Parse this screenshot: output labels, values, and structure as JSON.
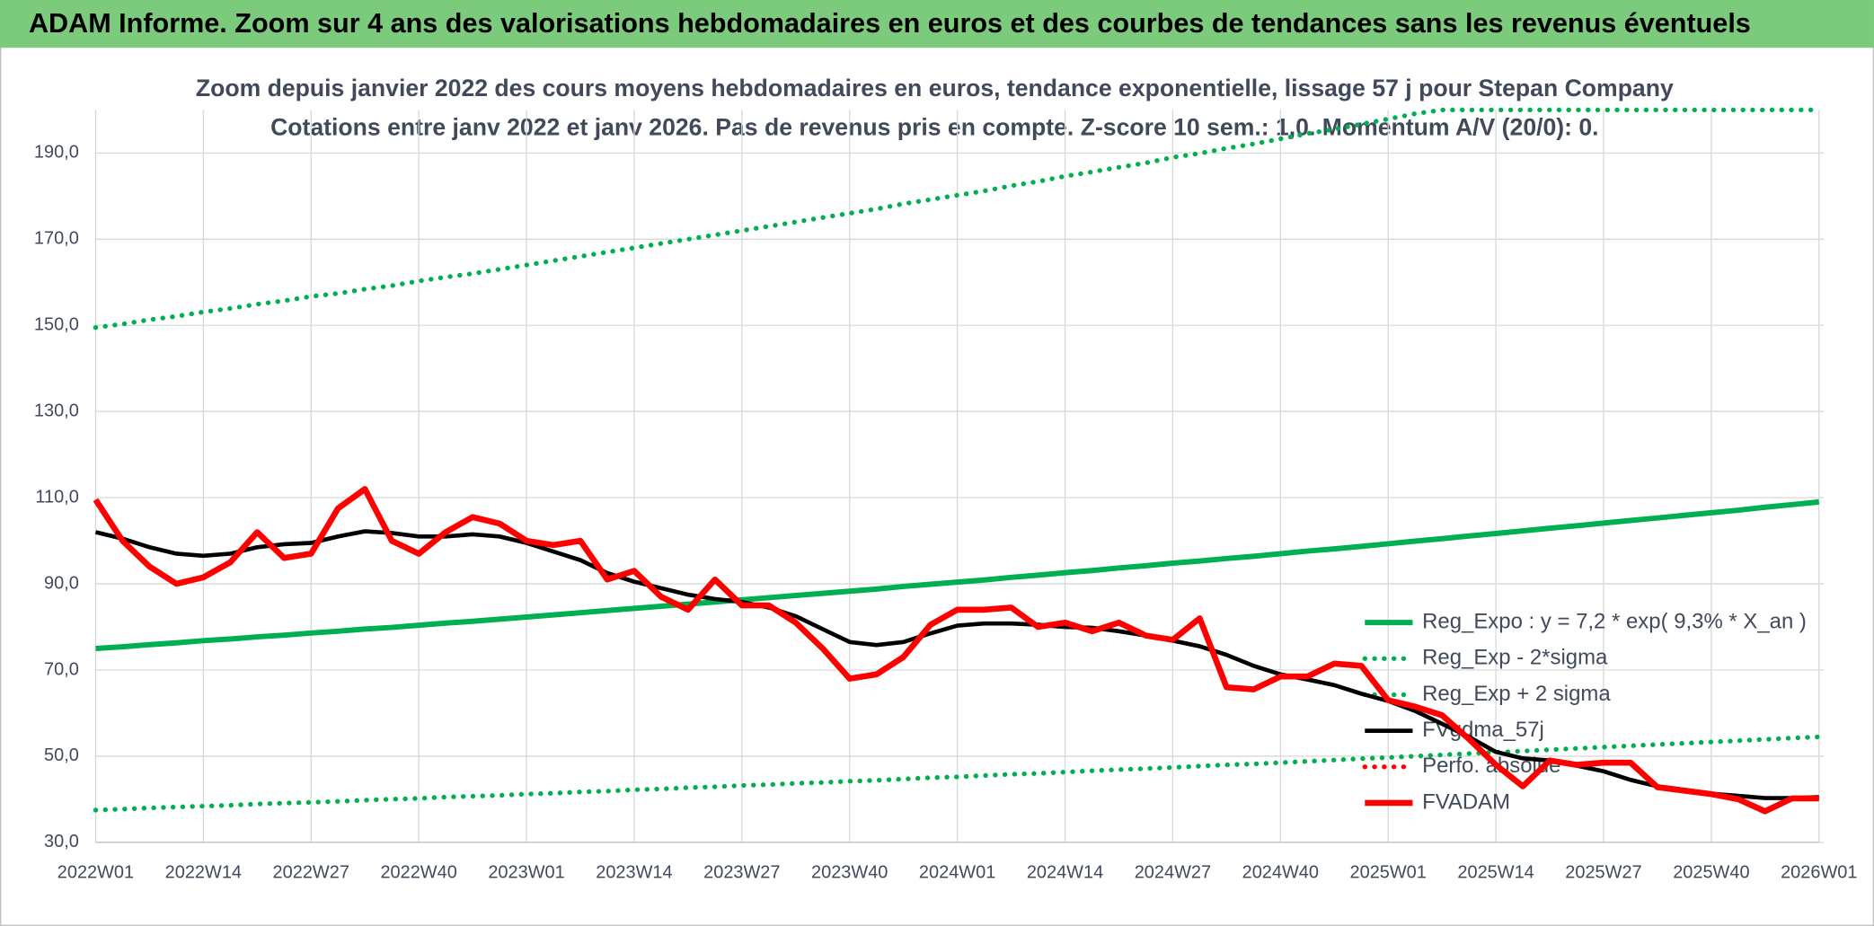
{
  "header": {
    "title": "ADAM Informe. Zoom sur 4 ans des valorisations hebdomadaires en euros et des courbes de tendances sans les revenus éventuels"
  },
  "chart_data": {
    "type": "line",
    "title": "Zoom depuis janvier 2022 des cours moyens hebdomadaires en euros, tendance exponentielle, lissage 57 j pour Stepan Company",
    "subtitle": "Cotations entre janv 2022 et janv 2026. Pas de revenus pris en compte. Z-score 10 sem.: 1,0. Momentum A/V (20/0): 0.",
    "categories": [
      "2022W01",
      null,
      null,
      null,
      "2022W14",
      null,
      null,
      null,
      "2022W27",
      null,
      null,
      null,
      "2022W40",
      null,
      null,
      null,
      "2023W01",
      null,
      null,
      null,
      "2023W14",
      null,
      null,
      null,
      "2023W27",
      null,
      null,
      null,
      "2023W40",
      null,
      null,
      null,
      "2024W01",
      null,
      null,
      null,
      "2024W14",
      null,
      null,
      null,
      "2024W27",
      null,
      null,
      null,
      "2024W40",
      null,
      null,
      null,
      "2025W01",
      null,
      null,
      null,
      "2025W14",
      null,
      null,
      null,
      "2025W27",
      null,
      null,
      null,
      "2025W40",
      null,
      null,
      null,
      "2026W01"
    ],
    "ylim": [
      30,
      200
    ],
    "yticks": [
      {
        "value": 30,
        "label": "30,0"
      },
      {
        "value": 50,
        "label": "50,0"
      },
      {
        "value": 70,
        "label": "70,0"
      },
      {
        "value": 90,
        "label": "90,0"
      },
      {
        "value": 110,
        "label": "110,0"
      },
      {
        "value": 130,
        "label": "130,0"
      },
      {
        "value": 150,
        "label": "150,0"
      },
      {
        "value": 170,
        "label": "170,0"
      },
      {
        "value": 190,
        "label": "190,0"
      }
    ],
    "grid": true,
    "legend": "right",
    "series": [
      {
        "name": "Reg_Expo : y = 7,2 * exp( 9,3% *  X_an )",
        "color": "#00b050",
        "style": "solid",
        "values": [
          75.0,
          75.4,
          75.9,
          76.3,
          76.8,
          77.2,
          77.7,
          78.1,
          78.6,
          79.0,
          79.5,
          79.9,
          80.4,
          80.9,
          81.3,
          81.8,
          82.3,
          82.8,
          83.3,
          83.8,
          84.3,
          84.8,
          85.3,
          85.8,
          86.3,
          86.8,
          87.3,
          87.8,
          88.3,
          88.8,
          89.4,
          89.9,
          90.4,
          90.9,
          91.5,
          92.0,
          92.6,
          93.1,
          93.7,
          94.2,
          94.8,
          95.3,
          95.9,
          96.4,
          97.0,
          97.6,
          98.1,
          98.7,
          99.3,
          99.9,
          100.5,
          101.1,
          101.7,
          102.3,
          102.9,
          103.5,
          104.1,
          104.7,
          105.3,
          105.9,
          106.5,
          107.1,
          107.8,
          108.4,
          109.0
        ]
      },
      {
        "name": "Reg_Exp - 2*sigma",
        "color": "#00b050",
        "style": "dotted",
        "values": [
          37.5,
          37.7,
          38.0,
          38.2,
          38.4,
          38.6,
          38.9,
          39.1,
          39.3,
          39.5,
          39.8,
          40.0,
          40.2,
          40.5,
          40.7,
          40.9,
          41.2,
          41.4,
          41.7,
          41.9,
          42.2,
          42.4,
          42.7,
          42.9,
          43.2,
          43.4,
          43.7,
          43.9,
          44.2,
          44.4,
          44.7,
          45.0,
          45.2,
          45.5,
          45.8,
          46.0,
          46.3,
          46.6,
          46.9,
          47.1,
          47.4,
          47.7,
          48.0,
          48.2,
          48.5,
          48.8,
          49.1,
          49.4,
          49.7,
          50.0,
          50.3,
          50.6,
          50.9,
          51.2,
          51.5,
          51.8,
          52.1,
          52.4,
          52.7,
          53.0,
          53.3,
          53.6,
          53.9,
          54.2,
          54.5
        ]
      },
      {
        "name": "Reg_Exp + 2 sigma",
        "color": "#00b050",
        "style": "dotted",
        "values": [
          149.5,
          150.3,
          151.3,
          152.1,
          153.1,
          153.9,
          154.9,
          155.7,
          156.7,
          157.4,
          158.4,
          159.2,
          160.3,
          161.2,
          162.0,
          163.0,
          164.0,
          165.0,
          166.0,
          167.0,
          168.0,
          169.0,
          170.0,
          171.0,
          172.0,
          173.0,
          174.0,
          175.0,
          176.0,
          177.0,
          178.2,
          179.2,
          180.2,
          181.2,
          182.4,
          183.4,
          184.6,
          185.6,
          186.7,
          187.7,
          189.0,
          189.9,
          191.1,
          192.1,
          193.3,
          194.5,
          195.5,
          196.7,
          197.9,
          199.1,
          200,
          200,
          200,
          200,
          200,
          200,
          200,
          200,
          200,
          200,
          200,
          200,
          200,
          200,
          200
        ]
      },
      {
        "name": "FVgdma_57j",
        "color": "#000000",
        "style": "solid",
        "values": [
          102.0,
          100.5,
          98.5,
          97.0,
          96.5,
          97.0,
          98.5,
          99.2,
          99.5,
          101.0,
          102.2,
          101.8,
          101.0,
          101.0,
          101.5,
          101.0,
          99.5,
          97.5,
          95.5,
          92.5,
          90.5,
          89.0,
          87.5,
          86.5,
          85.8,
          84.5,
          82.5,
          79.5,
          76.5,
          75.8,
          76.5,
          78.5,
          80.3,
          80.8,
          80.8,
          80.5,
          80.0,
          79.8,
          79.0,
          78.0,
          76.8,
          75.5,
          73.5,
          71.0,
          69.0,
          67.8,
          66.5,
          64.5,
          62.8,
          60.5,
          57.5,
          54.5,
          51.0,
          49.5,
          49.0,
          47.8,
          46.5,
          44.5,
          43.0,
          42.2,
          41.3,
          40.8,
          40.3,
          40.3,
          40.5
        ]
      },
      {
        "name": "Perfo. absolue",
        "color": "#ff0000",
        "style": "dotted",
        "values": [
          null,
          null,
          null,
          null,
          null,
          null,
          null,
          null,
          null,
          null,
          null,
          null,
          null,
          null,
          null,
          null,
          null,
          null,
          null,
          null,
          null,
          null,
          null,
          null,
          null,
          null,
          null,
          null,
          null,
          null,
          null,
          null,
          null,
          null,
          null,
          null,
          null,
          null,
          null,
          null,
          null,
          null,
          null,
          null,
          null,
          null,
          null,
          null,
          null,
          null,
          null,
          null,
          null,
          null,
          null,
          null,
          null,
          null,
          null,
          null,
          null,
          null,
          null,
          null,
          null
        ]
      },
      {
        "name": "FVADAM",
        "color": "#ff0000",
        "style": "solid",
        "values": [
          109.5,
          100,
          94,
          90,
          91.5,
          95,
          102,
          96,
          97,
          107.5,
          112,
          100,
          97,
          102,
          105.5,
          104,
          100,
          99,
          100,
          91,
          93,
          87,
          84,
          91,
          85,
          85,
          81,
          75,
          68,
          69,
          73,
          80.5,
          84,
          84,
          84.5,
          80,
          81,
          79,
          81,
          78,
          77,
          82,
          66,
          65.5,
          68.5,
          68.5,
          71.5,
          71,
          63,
          61.5,
          59.5,
          54,
          48,
          43,
          49,
          48,
          48.5,
          48.5,
          42.8,
          42,
          41.2,
          40,
          37.2,
          40.2,
          40.2
        ]
      }
    ]
  }
}
